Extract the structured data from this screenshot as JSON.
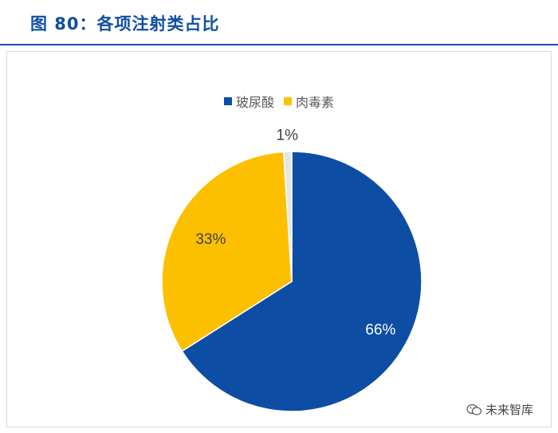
{
  "header": {
    "title": "图 80：各项注射类占比"
  },
  "colors": {
    "accent": "#0f4fa3",
    "series": [
      "#0e4da4",
      "#fcc000",
      "#e6e6e6"
    ]
  },
  "chart_data": {
    "type": "pie",
    "title": "",
    "legend_position": "top",
    "legend": [
      "玻尿酸",
      "肉毒素"
    ],
    "slices": [
      {
        "name": "玻尿酸",
        "value": 66,
        "label": "66%"
      },
      {
        "name": "肉毒素",
        "value": 33,
        "label": "33%"
      },
      {
        "name": "",
        "value": 1,
        "label": "1%"
      }
    ]
  },
  "watermark": {
    "text": "未来智库",
    "icon": "wechat-icon"
  }
}
